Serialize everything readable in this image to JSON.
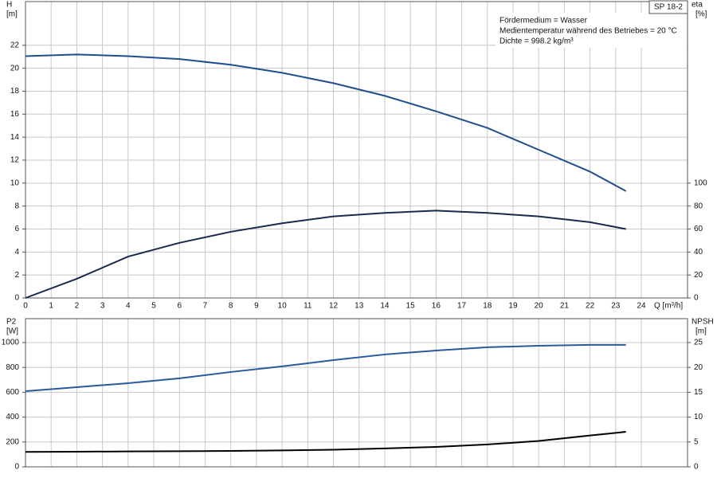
{
  "chart_data": [
    {
      "type": "line",
      "model_label": "SP 18-2",
      "annotations": [
        "Fördermedium = Wasser",
        "Medientemperatur während des Betriebes = 20 °C",
        "Dichte = 998.2 kg/m³"
      ],
      "x_label": "Q [m³/h]",
      "y_label": "H",
      "y_unit": "[m]",
      "y2_label": "eta",
      "y2_unit": "[%]",
      "x": [
        0,
        2,
        4,
        6,
        8,
        10,
        12,
        14,
        16,
        18,
        20,
        22,
        23.4
      ],
      "xlim": [
        0,
        25.8
      ],
      "xticks": [
        0,
        1,
        2,
        3,
        4,
        5,
        6,
        7,
        8,
        9,
        10,
        11,
        12,
        13,
        14,
        15,
        16,
        17,
        18,
        19,
        20,
        21,
        22,
        23,
        24
      ],
      "show_xtick_labels": true,
      "ylim": [
        0,
        25.8
      ],
      "yticks": [
        0,
        2,
        4,
        6,
        8,
        10,
        12,
        14,
        16,
        18,
        20,
        22
      ],
      "y2lim": [
        0,
        258
      ],
      "y2ticks": [
        0,
        20,
        40,
        60,
        80,
        100
      ],
      "grid": true,
      "series": [
        {
          "name": "H",
          "color": "#1f4e8c",
          "values": [
            21.05,
            21.2,
            21.05,
            20.8,
            20.3,
            19.6,
            18.7,
            17.6,
            16.25,
            14.8,
            12.9,
            11.0,
            9.3
          ]
        },
        {
          "name": "eta",
          "color": "#1a2a4a",
          "axis": "y2",
          "values": [
            0,
            16.7,
            36,
            48,
            57.6,
            65,
            71,
            74,
            76,
            74,
            71,
            66,
            60
          ]
        }
      ]
    },
    {
      "type": "line",
      "y_label": "P2",
      "y_unit": "[W]",
      "y2_label": "NPSH",
      "y2_unit": "[m]",
      "x": [
        0,
        2,
        4,
        6,
        8,
        10,
        12,
        14,
        16,
        18,
        20,
        22,
        23.4
      ],
      "xlim": [
        0,
        25.8
      ],
      "xticks": [
        0,
        1,
        2,
        3,
        4,
        5,
        6,
        7,
        8,
        9,
        10,
        11,
        12,
        13,
        14,
        15,
        16,
        17,
        18,
        19,
        20,
        21,
        22,
        23,
        24
      ],
      "show_xtick_labels": false,
      "ylim": [
        0,
        1192
      ],
      "yticks": [
        0,
        200,
        400,
        600,
        800,
        1000
      ],
      "y2lim": [
        0,
        29.8
      ],
      "y2ticks": [
        0,
        5,
        10,
        15,
        20,
        25
      ],
      "grid": true,
      "series": [
        {
          "name": "P2",
          "color": "#2a5a9a",
          "values": [
            609,
            641,
            673,
            712,
            763,
            808,
            859,
            904,
            936,
            962,
            974,
            981,
            981
          ]
        },
        {
          "name": "NPSH",
          "color": "#000000",
          "axis": "y2",
          "values": [
            3.0,
            3.05,
            3.1,
            3.15,
            3.2,
            3.3,
            3.45,
            3.7,
            4.0,
            4.5,
            5.2,
            6.3,
            7.05
          ]
        }
      ]
    }
  ]
}
